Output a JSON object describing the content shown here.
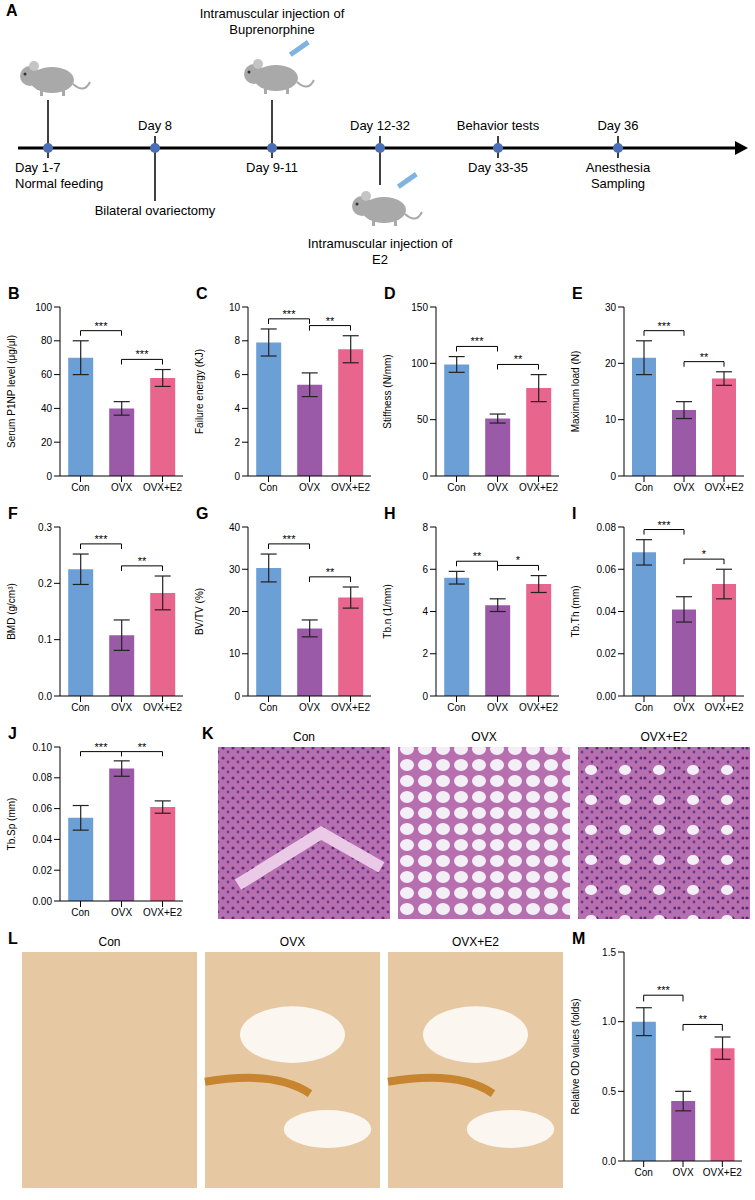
{
  "panels": {
    "A": {
      "letter": "A",
      "timeline": [
        {
          "below": [
            "Day 1-7",
            "Normal feeding"
          ]
        },
        {
          "above": [
            "Day 8"
          ],
          "below": [
            "Bilateral ovariectomy"
          ]
        },
        {
          "above": [
            "Intramuscular injection of",
            "Buprenorphine"
          ],
          "below": [
            "Day 9-11"
          ]
        },
        {
          "above": [
            "Day 12-32"
          ],
          "below": [
            "Intramuscular injection of",
            "E2"
          ]
        },
        {
          "above": [
            "Behavior tests"
          ],
          "below": [
            "Day 33-35"
          ]
        },
        {
          "above": [
            "Day 36"
          ],
          "below": [
            "Anesthesia",
            "Sampling"
          ]
        }
      ]
    },
    "K": {
      "letter": "K",
      "titles": [
        "Con",
        "OVX",
        "OVX+E2"
      ]
    },
    "L": {
      "letter": "L",
      "titles": [
        "Con",
        "OVX",
        "OVX+E2"
      ]
    }
  },
  "chart_data": [
    {
      "letter": "B",
      "type": "bar",
      "y_label": "Serum P1NP level (μg/μl)",
      "categories": [
        "Con",
        "OVX",
        "OVX+E2"
      ],
      "values": [
        70,
        40,
        58
      ],
      "errors": [
        10,
        4,
        5
      ],
      "colors": [
        "#6b9fd6",
        "#9a5aa8",
        "#e8658e"
      ],
      "ylim": [
        0,
        100
      ],
      "yticks": [
        0,
        20,
        40,
        60,
        80,
        100
      ],
      "significance": [
        {
          "from": 0,
          "to": 1,
          "label": "***"
        },
        {
          "from": 1,
          "to": 2,
          "label": "***"
        }
      ]
    },
    {
      "letter": "C",
      "type": "bar",
      "y_label": "Failure energy (KJ)",
      "categories": [
        "Con",
        "OVX",
        "OVX+E2"
      ],
      "values": [
        7.9,
        5.4,
        7.5
      ],
      "errors": [
        0.8,
        0.7,
        0.8
      ],
      "colors": [
        "#6b9fd6",
        "#9a5aa8",
        "#e8658e"
      ],
      "ylim": [
        0,
        10
      ],
      "yticks": [
        0,
        2,
        4,
        6,
        8,
        10
      ],
      "significance": [
        {
          "from": 0,
          "to": 1,
          "label": "***"
        },
        {
          "from": 1,
          "to": 2,
          "label": "**"
        }
      ]
    },
    {
      "letter": "D",
      "type": "bar",
      "y_label": "Stiffness (N/mm)",
      "categories": [
        "Con",
        "OVX",
        "OVX+E2"
      ],
      "values": [
        99,
        51,
        78
      ],
      "errors": [
        7,
        4,
        12
      ],
      "colors": [
        "#6b9fd6",
        "#9a5aa8",
        "#e8658e"
      ],
      "ylim": [
        0,
        150
      ],
      "yticks": [
        0,
        50,
        100,
        150
      ],
      "significance": [
        {
          "from": 0,
          "to": 1,
          "label": "***"
        },
        {
          "from": 1,
          "to": 2,
          "label": "**"
        }
      ]
    },
    {
      "letter": "E",
      "type": "bar",
      "y_label": "Maximum load (N)",
      "categories": [
        "Con",
        "OVX",
        "OVX+E2"
      ],
      "values": [
        21,
        11.7,
        17.3
      ],
      "errors": [
        3,
        1.5,
        1.2
      ],
      "colors": [
        "#6b9fd6",
        "#9a5aa8",
        "#e8658e"
      ],
      "ylim": [
        0,
        30
      ],
      "yticks": [
        0,
        10,
        20,
        30
      ],
      "significance": [
        {
          "from": 0,
          "to": 1,
          "label": "***"
        },
        {
          "from": 1,
          "to": 2,
          "label": "**"
        }
      ]
    },
    {
      "letter": "F",
      "type": "bar",
      "y_label": "BMD (g/cm³)",
      "categories": [
        "Con",
        "OVX",
        "OVX+E2"
      ],
      "values": [
        0.225,
        0.108,
        0.183
      ],
      "errors": [
        0.027,
        0.027,
        0.03
      ],
      "colors": [
        "#6b9fd6",
        "#9a5aa8",
        "#e8658e"
      ],
      "ylim": [
        0,
        0.3
      ],
      "yticks": [
        {
          "value": 0,
          "label": "0.0"
        },
        0.1,
        0.2,
        0.3
      ],
      "significance": [
        {
          "from": 0,
          "to": 1,
          "label": "***"
        },
        {
          "from": 1,
          "to": 2,
          "label": "**"
        }
      ]
    },
    {
      "letter": "G",
      "type": "bar",
      "y_label": "BV/TV (%)",
      "categories": [
        "Con",
        "OVX",
        "OVX+E2"
      ],
      "values": [
        30.3,
        16,
        23.3
      ],
      "errors": [
        3.3,
        2,
        2.5
      ],
      "colors": [
        "#6b9fd6",
        "#9a5aa8",
        "#e8658e"
      ],
      "ylim": [
        0,
        40
      ],
      "yticks": [
        0,
        10,
        20,
        30,
        40
      ],
      "significance": [
        {
          "from": 0,
          "to": 1,
          "label": "***"
        },
        {
          "from": 1,
          "to": 2,
          "label": "**"
        }
      ]
    },
    {
      "letter": "H",
      "type": "bar",
      "y_label": "Tb.n (1/mm)",
      "categories": [
        "Con",
        "OVX",
        "OVX+E2"
      ],
      "values": [
        5.6,
        4.3,
        5.3
      ],
      "errors": [
        0.3,
        0.3,
        0.4
      ],
      "colors": [
        "#6b9fd6",
        "#9a5aa8",
        "#e8658e"
      ],
      "ylim": [
        0,
        8
      ],
      "yticks": [
        0,
        2,
        4,
        6,
        8
      ],
      "significance": [
        {
          "from": 0,
          "to": 1,
          "label": "**"
        },
        {
          "from": 1,
          "to": 2,
          "label": "*"
        }
      ]
    },
    {
      "letter": "I",
      "type": "bar",
      "y_label": "Tb.Th (mm)",
      "categories": [
        "Con",
        "OVX",
        "OVX+E2"
      ],
      "values": [
        0.068,
        0.041,
        0.053
      ],
      "errors": [
        0.006,
        0.006,
        0.007
      ],
      "colors": [
        "#6b9fd6",
        "#9a5aa8",
        "#e8658e"
      ],
      "ylim": [
        0,
        0.08
      ],
      "yticks": [
        {
          "value": 0,
          "label": "0.00"
        },
        {
          "value": 0.02,
          "label": "0.02"
        },
        {
          "value": 0.04,
          "label": "0.04"
        },
        {
          "value": 0.06,
          "label": "0.06"
        },
        {
          "value": 0.08,
          "label": "0.08"
        }
      ],
      "significance": [
        {
          "from": 0,
          "to": 1,
          "label": "***"
        },
        {
          "from": 1,
          "to": 2,
          "label": "*"
        }
      ]
    },
    {
      "letter": "J",
      "type": "bar",
      "y_label": "Tb.Sp (mm)",
      "categories": [
        "Con",
        "OVX",
        "OVX+E2"
      ],
      "values": [
        0.054,
        0.086,
        0.061
      ],
      "errors": [
        0.008,
        0.005,
        0.004
      ],
      "colors": [
        "#6b9fd6",
        "#9a5aa8",
        "#e8658e"
      ],
      "ylim": [
        0,
        0.1
      ],
      "yticks": [
        {
          "value": 0,
          "label": "0.00"
        },
        {
          "value": 0.02,
          "label": "0.02"
        },
        {
          "value": 0.04,
          "label": "0.04"
        },
        {
          "value": 0.06,
          "label": "0.06"
        },
        {
          "value": 0.08,
          "label": "0.08"
        },
        {
          "value": 0.1,
          "label": "0.10"
        }
      ],
      "significance": [
        {
          "from": 0,
          "to": 1,
          "label": "***"
        },
        {
          "from": 1,
          "to": 2,
          "label": "**"
        }
      ]
    },
    {
      "letter": "M",
      "type": "bar",
      "y_label": "Relative OD values (folds)",
      "categories": [
        "Con",
        "OVX",
        "OVX+E2"
      ],
      "values": [
        1.0,
        0.43,
        0.81
      ],
      "errors": [
        0.1,
        0.07,
        0.08
      ],
      "colors": [
        "#6b9fd6",
        "#9a5aa8",
        "#e8658e"
      ],
      "ylim": [
        0,
        1.5
      ],
      "yticks": [
        {
          "value": 0,
          "label": "0.0"
        },
        0.5,
        {
          "value": 1,
          "label": "1.0"
        },
        1.5
      ],
      "significance": [
        {
          "from": 0,
          "to": 1,
          "label": "***"
        },
        {
          "from": 1,
          "to": 2,
          "label": "**"
        }
      ]
    }
  ]
}
